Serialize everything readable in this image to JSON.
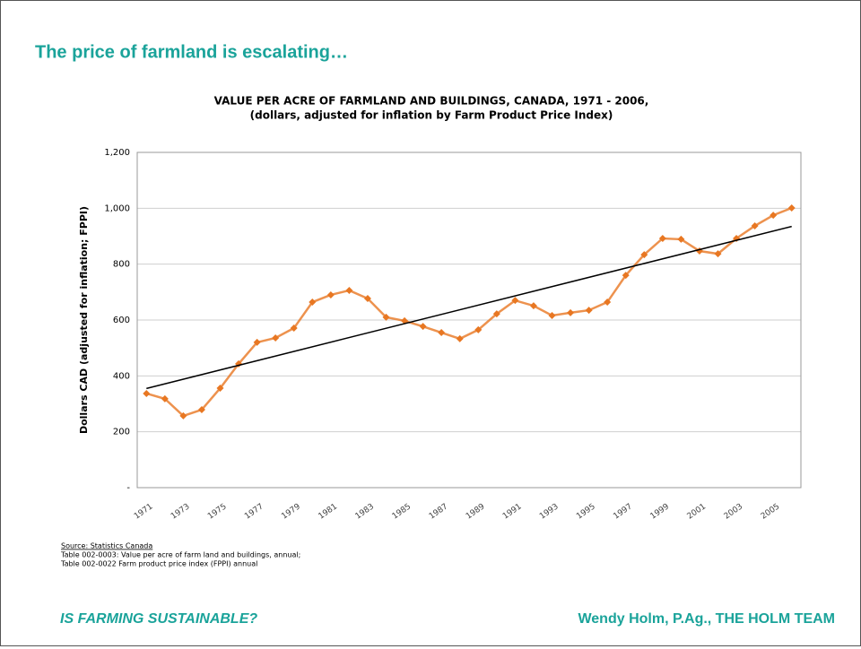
{
  "slide": {
    "title": "The price of farmland is escalating…",
    "footer_left": "IS FARMING SUSTAINABLE?",
    "footer_right": "Wendy Holm, P.Ag., THE HOLM TEAM"
  },
  "chart_data": {
    "type": "line",
    "title": [
      "VALUE PER ACRE OF FARMLAND AND BUILDINGS, CANADA, 1971 - 2006,",
      "(dollars, adjusted for inflation by Farm Product Price Index)"
    ],
    "y_label": "Dollars CAD (adjusted for inflation; FPPI)",
    "categories": [
      "1971",
      null,
      "1973",
      null,
      "1975",
      null,
      "1977",
      null,
      "1979",
      null,
      "1981",
      null,
      "1983",
      null,
      "1985",
      null,
      "1987",
      null,
      "1989",
      null,
      "1991",
      null,
      "1993",
      null,
      "1995",
      null,
      "1997",
      null,
      "1999",
      null,
      "2001",
      null,
      "2003",
      null,
      "2005",
      null
    ],
    "series": [
      {
        "color": "#e87722",
        "values": [
          337,
          318,
          257,
          279,
          356,
          443,
          520,
          536,
          571,
          664,
          690,
          706,
          677,
          610,
          597,
          577,
          555,
          533,
          565,
          622,
          670,
          651,
          616,
          626,
          635,
          664,
          760,
          834,
          892,
          889,
          847,
          837,
          892,
          937,
          975,
          1001
        ]
      }
    ],
    "trendline": {
      "values": [
        355,
        935
      ],
      "color": "#000000"
    },
    "ylim": [
      0,
      1200
    ],
    "yticks": [
      {
        "value": 0,
        "label": "-"
      },
      200,
      400,
      600,
      800,
      {
        "value": 1000,
        "label": "1,000"
      },
      {
        "value": 1200,
        "label": "1,200"
      }
    ],
    "grid": true,
    "source": [
      "Source:  Statistics Canada",
      "Table 002-0003: Value per acre of farm land and buildings, annual;",
      "Table 002-0022 Farm product price index (FPPI) annual"
    ]
  }
}
